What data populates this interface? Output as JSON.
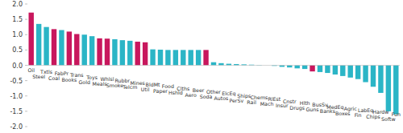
{
  "chart_data": {
    "type": "bar",
    "categories": [
      "Oil",
      "Steel",
      "Txtls",
      "Coal",
      "FabPr",
      "Books",
      "Trans",
      "Gold",
      "Toys",
      "Meals",
      "Whlsl",
      "Smoke",
      "Rubbr",
      "Telcm",
      "Mines",
      "Util",
      "BldMt",
      "Paper",
      "Food",
      "Hshld",
      "Clths",
      "Aero",
      "Beer",
      "Soda",
      "Other",
      "Autos",
      "ElcEq",
      "PerSv",
      "Ships",
      "Rail",
      "Chems",
      "Mach",
      "RlEst",
      "Insur",
      "Cnstr",
      "Drugs",
      "Hlth",
      "Guns",
      "BusSv",
      "Banks",
      "MedEq",
      "Boxes",
      "Agric",
      "Fin",
      "LabEq",
      "Chips",
      "Hardw",
      "Softw",
      "Fun"
    ],
    "values": [
      1.72,
      1.35,
      1.25,
      1.18,
      1.15,
      1.1,
      1.02,
      1.0,
      0.95,
      0.88,
      0.87,
      0.85,
      0.82,
      0.8,
      0.77,
      0.75,
      0.52,
      0.51,
      0.5,
      0.5,
      0.5,
      0.5,
      0.5,
      0.5,
      0.1,
      0.07,
      0.05,
      0.04,
      0.03,
      0.02,
      0.01,
      0.0,
      -0.02,
      -0.05,
      -0.07,
      -0.1,
      -0.12,
      -0.2,
      -0.22,
      -0.25,
      -0.3,
      -0.35,
      -0.4,
      -0.45,
      -0.55,
      -0.7,
      -0.9,
      -1.5,
      -1.6
    ],
    "colors": [
      "#c8175d",
      "#2bb5c6",
      "#2bb5c6",
      "#c8175d",
      "#2bb5c6",
      "#c8175d",
      "#c8175d",
      "#2bb5c6",
      "#2bb5c6",
      "#c8175d",
      "#c8175d",
      "#2bb5c6",
      "#2bb5c6",
      "#2bb5c6",
      "#c8175d",
      "#c8175d",
      "#2bb5c6",
      "#2bb5c6",
      "#2bb5c6",
      "#2bb5c6",
      "#2bb5c6",
      "#2bb5c6",
      "#2bb5c6",
      "#c8175d",
      "#2bb5c6",
      "#2bb5c6",
      "#2bb5c6",
      "#2bb5c6",
      "#2bb5c6",
      "#2bb5c6",
      "#2bb5c6",
      "#2bb5c6",
      "#2bb5c6",
      "#2bb5c6",
      "#2bb5c6",
      "#2bb5c6",
      "#2bb5c6",
      "#c8175d",
      "#2bb5c6",
      "#2bb5c6",
      "#2bb5c6",
      "#2bb5c6",
      "#2bb5c6",
      "#2bb5c6",
      "#2bb5c6",
      "#2bb5c6",
      "#2bb5c6",
      "#2bb5c6",
      "#2bb5c6"
    ],
    "ylim": [
      -2,
      2
    ],
    "yticks": [
      {
        "value": 2,
        "label": "2.0"
      },
      {
        "value": 1.5,
        "label": "1.5"
      },
      {
        "value": 1,
        "label": "1.0"
      },
      {
        "value": 0.5,
        "label": "0.5"
      },
      {
        "value": 0,
        "label": "0.0"
      },
      {
        "value": -0.5,
        "label": "-0.5"
      },
      {
        "value": -1,
        "label": "-1.0"
      },
      {
        "value": -1.5,
        "label": "-1.5"
      },
      {
        "value": -2,
        "label": "-2.0"
      }
    ],
    "grid": false
  }
}
